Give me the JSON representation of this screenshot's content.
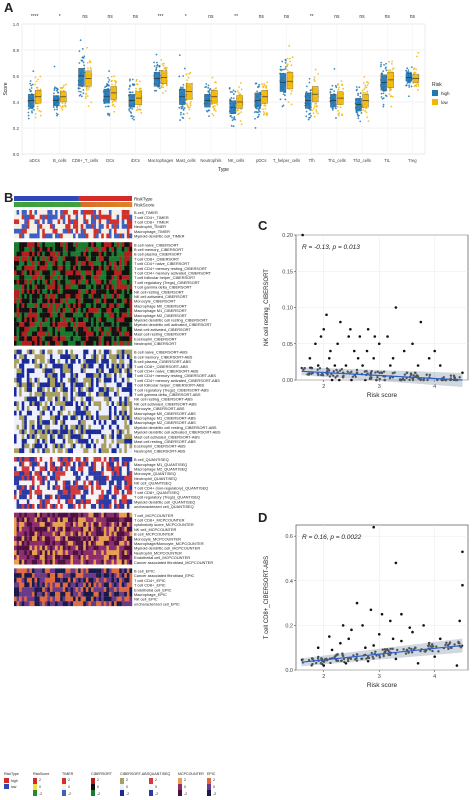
{
  "panel_letters": {
    "a": "A",
    "b": "B",
    "c": "C",
    "d": "D"
  },
  "chart_data": [
    {
      "type": "box",
      "id": "A",
      "xlabel": "Type",
      "ylabel": "Score",
      "ylim": [
        0.0,
        1.0
      ],
      "yticks": [
        "0.0",
        "0.2",
        "0.4",
        "0.6",
        "0.8",
        "1.0"
      ],
      "legend_title": "Risk",
      "legend_placement": "right",
      "series": [
        {
          "name": "high",
          "color": "#1f77b4"
        },
        {
          "name": "low",
          "color": "#f2b705"
        }
      ],
      "categories": [
        "aDCs",
        "B_cells",
        "CD8+_T_cells",
        "DCs",
        "iDCs",
        "Macrophages",
        "Mast_cells",
        "Neutrophils",
        "NK_cells",
        "pDCs",
        "T_helper_cells",
        "Tfh",
        "Th1_cells",
        "Th2_cells",
        "TIL",
        "Treg"
      ],
      "significance": [
        "****",
        "*",
        "ns",
        "ns",
        "ns",
        "***",
        "*",
        "ns",
        "**",
        "ns",
        "ns",
        "**",
        "ns",
        "ns",
        "ns",
        "ns"
      ],
      "medians_high": [
        0.41,
        0.41,
        0.6,
        0.44,
        0.41,
        0.58,
        0.44,
        0.41,
        0.36,
        0.41,
        0.55,
        0.41,
        0.41,
        0.38,
        0.55,
        0.59
      ],
      "medians_low": [
        0.44,
        0.44,
        0.58,
        0.47,
        0.43,
        0.59,
        0.48,
        0.44,
        0.4,
        0.44,
        0.56,
        0.46,
        0.43,
        0.41,
        0.57,
        0.58
      ],
      "q_high": [
        [
          0.36,
          0.46
        ],
        [
          0.37,
          0.45
        ],
        [
          0.52,
          0.66
        ],
        [
          0.39,
          0.5
        ],
        [
          0.36,
          0.46
        ],
        [
          0.52,
          0.63
        ],
        [
          0.38,
          0.5
        ],
        [
          0.36,
          0.46
        ],
        [
          0.31,
          0.41
        ],
        [
          0.36,
          0.47
        ],
        [
          0.48,
          0.62
        ],
        [
          0.35,
          0.47
        ],
        [
          0.36,
          0.46
        ],
        [
          0.33,
          0.43
        ],
        [
          0.49,
          0.61
        ],
        [
          0.56,
          0.62
        ]
      ],
      "q_low": [
        [
          0.39,
          0.49
        ],
        [
          0.4,
          0.48
        ],
        [
          0.52,
          0.64
        ],
        [
          0.42,
          0.52
        ],
        [
          0.38,
          0.48
        ],
        [
          0.54,
          0.64
        ],
        [
          0.42,
          0.54
        ],
        [
          0.39,
          0.49
        ],
        [
          0.35,
          0.45
        ],
        [
          0.39,
          0.49
        ],
        [
          0.5,
          0.63
        ],
        [
          0.4,
          0.52
        ],
        [
          0.38,
          0.48
        ],
        [
          0.36,
          0.46
        ],
        [
          0.51,
          0.63
        ],
        [
          0.55,
          0.61
        ]
      ]
    },
    {
      "type": "heatmap",
      "id": "B",
      "annotations": [
        "RiskType",
        "RiskScore"
      ],
      "riskType_colors": {
        "high": "#d42a2a",
        "low": "#2f48b8"
      },
      "groups": [
        {
          "name": "TIMER",
          "rows": [
            "B cell_TIMER",
            "T cell CD4+_TIMER",
            "T cell CD8+_TIMER",
            "Neutrophil_TIMER",
            "Macrophage_TIMER",
            "Myeloid dendritic cell_TIMER"
          ]
        },
        {
          "name": "CIBERSORT",
          "rows": [
            "B cell naive_CIBERSORT",
            "B cell memory_CIBERSORT",
            "B cell plasma_CIBERSORT",
            "T cell CD8+_CIBERSORT",
            "T cell CD4+ naive_CIBERSORT",
            "T cell CD4+ memory resting_CIBERSORT",
            "T cell CD4+ memory activated_CIBERSORT",
            "T cell follicular helper_CIBERSORT",
            "T cell regulatory (Tregs)_CIBERSORT",
            "T cell gamma delta_CIBERSORT",
            "NK cell resting_CIBERSORT",
            "NK cell activated_CIBERSORT",
            "Monocyte_CIBERSORT",
            "Macrophage M0_CIBERSORT",
            "Macrophage M1_CIBERSORT",
            "Macrophage M2_CIBERSORT",
            "Myeloid dendritic cell resting_CIBERSORT",
            "Myeloid dendritic cell activated_CIBERSORT",
            "Mast cell activated_CIBERSORT",
            "Mast cell resting_CIBERSORT",
            "Eosinophil_CIBERSORT",
            "Neutrophil_CIBERSORT"
          ]
        },
        {
          "name": "CIBERSORT-ABS",
          "rows": [
            "B cell naive_CIBERSORT-ABS",
            "B cell memory_CIBERSORT-ABS",
            "B cell plasma_CIBERSORT-ABS",
            "T cell CD8+_CIBERSORT-ABS",
            "T cell CD4+ naive_CIBERSORT-ABS",
            "T cell CD4+ memory resting_CIBERSORT-ABS",
            "T cell CD4+ memory activated_CIBERSORT-ABS",
            "T cell follicular helper_CIBERSORT-ABS",
            "T cell regulatory (Tregs)_CIBERSORT-ABS",
            "T cell gamma delta_CIBERSORT-ABS",
            "NK cell resting_CIBERSORT-ABS",
            "NK cell activated_CIBERSORT-ABS",
            "Monocyte_CIBERSORT-ABS",
            "Macrophage M0_CIBERSORT-ABS",
            "Macrophage M1_CIBERSORT-ABS",
            "Macrophage M2_CIBERSORT-ABS",
            "Myeloid dendritic cell resting_CIBERSORT-ABS",
            "Myeloid dendritic cell activated_CIBERSORT-ABS",
            "Mast cell activated_CIBERSORT-ABS",
            "Mast cell resting_CIBERSORT-ABS",
            "Eosinophil_CIBERSORT-ABS",
            "Neutrophil_CIBERSORT-ABS"
          ]
        },
        {
          "name": "QUANTISEQ",
          "rows": [
            "B cell_QUANTISEQ",
            "Macrophage M1_QUANTISEQ",
            "Macrophage M2_QUANTISEQ",
            "Monocyte_QUANTISEQ",
            "Neutrophil_QUANTISEQ",
            "NK cell_QUANTISEQ",
            "T cell CD4+ (non-regulatory)_QUANTISEQ",
            "T cell CD8+_QUANTISEQ",
            "T cell regulatory (Tregs)_QUANTISEQ",
            "Myeloid dendritic cell_QUANTISEQ",
            "uncharacterized cell_QUANTISEQ"
          ]
        },
        {
          "name": "MCPCOUNTER",
          "rows": [
            "T cell_MCPCOUNTER",
            "T cell CD8+_MCPCOUNTER",
            "cytotoxicity score_MCPCOUNTER",
            "NK cell_MCPCOUNTER",
            "B cell_MCPCOUNTER",
            "Monocyte_MCPCOUNTER",
            "Macrophage/Monocyte_MCPCOUNTER",
            "Myeloid dendritic cell_MCPCOUNTER",
            "Neutrophil_MCPCOUNTER",
            "Endothelial cell_MCPCOUNTER",
            "Cancer associated fibroblast_MCPCOUNTER"
          ]
        },
        {
          "name": "EPIC",
          "rows": [
            "B cell_EPIC",
            "Cancer associated fibroblast_EPIC",
            "T cell CD4+_EPIC",
            "T cell CD8+_EPIC",
            "Endothelial cell_EPIC",
            "Macrophage_EPIC",
            "NK cell_EPIC",
            "uncharacterized cell_EPIC"
          ]
        }
      ],
      "legend_titles": [
        "RiskType",
        "RiskScore",
        "TIMER",
        "CIBERSORT",
        "CIBERSORT-ABS",
        "QUANTISEQ",
        "MCPCOUNTER",
        "EPIC"
      ],
      "legend_risk_items": [
        "high",
        "low"
      ],
      "legend_ticks": [
        "2",
        "0",
        "-2"
      ]
    },
    {
      "type": "scatter",
      "id": "C",
      "xlabel": "Risk score",
      "ylabel": "NK cell resting_CIBERSORT",
      "annotation": "R = -0.13, p = 0.013",
      "xlim": [
        1.5,
        4.6
      ],
      "ylim": [
        0,
        0.2
      ],
      "xticks": [
        2,
        3,
        4
      ],
      "yticks": [
        "0.00",
        "0.05",
        "0.10",
        "0.15",
        "0.20"
      ],
      "fit": {
        "x": [
          1.6,
          4.5
        ],
        "y": [
          0.012,
          0.0
        ]
      },
      "points": [
        [
          1.62,
          0.2
        ],
        [
          1.75,
          0.03
        ],
        [
          1.8,
          0.01
        ],
        [
          1.9,
          0.02
        ],
        [
          1.95,
          0.06
        ],
        [
          2.0,
          0.07
        ],
        [
          2.05,
          0.01
        ],
        [
          2.1,
          0.03
        ],
        [
          2.15,
          0.0
        ],
        [
          2.2,
          0.02
        ],
        [
          2.25,
          0.05
        ],
        [
          2.3,
          0.08
        ],
        [
          2.35,
          0.01
        ],
        [
          2.4,
          0.02
        ],
        [
          2.45,
          0.06
        ],
        [
          2.5,
          0.0
        ],
        [
          2.55,
          0.04
        ],
        [
          2.6,
          0.01
        ],
        [
          2.65,
          0.06
        ],
        [
          2.7,
          0.02
        ],
        [
          2.75,
          0.0
        ],
        [
          2.8,
          0.07
        ],
        [
          2.85,
          0.01
        ],
        [
          2.9,
          0.03
        ],
        [
          2.95,
          0.0
        ],
        [
          3.0,
          0.05
        ],
        [
          3.05,
          0.01
        ],
        [
          3.1,
          0.0
        ],
        [
          3.2,
          0.02
        ],
        [
          3.3,
          0.1
        ],
        [
          3.4,
          0.0
        ],
        [
          3.5,
          0.01
        ],
        [
          3.7,
          0.02
        ],
        [
          3.8,
          0.0
        ],
        [
          4.0,
          0.04
        ],
        [
          4.2,
          0.0
        ],
        [
          4.4,
          0.0
        ],
        [
          4.5,
          0.01
        ],
        [
          3.6,
          0.05
        ],
        [
          3.75,
          0.08
        ],
        [
          3.9,
          0.03
        ],
        [
          2.12,
          0.04
        ],
        [
          2.28,
          0.0
        ],
        [
          2.62,
          0.03
        ],
        [
          2.78,
          0.04
        ],
        [
          3.15,
          0.06
        ],
        [
          3.25,
          0.03
        ],
        [
          1.85,
          0.05
        ],
        [
          2.05,
          0.09
        ],
        [
          2.48,
          0.07
        ],
        [
          2.92,
          0.06
        ],
        [
          3.45,
          0.04
        ],
        [
          3.65,
          0.01
        ],
        [
          4.1,
          0.02
        ]
      ]
    },
    {
      "type": "scatter",
      "id": "D",
      "xlabel": "Risk score",
      "ylabel": "T cell CD8+_CIBERSORT-ABS",
      "annotation": "R = 0.16, p = 0.0022",
      "xlim": [
        1.5,
        4.6
      ],
      "ylim": [
        0,
        0.65
      ],
      "xticks": [
        2,
        3,
        4
      ],
      "yticks": [
        "0.0",
        "0.2",
        "0.4",
        "0.6"
      ],
      "fit": {
        "x": [
          1.6,
          4.5
        ],
        "y": [
          0.035,
          0.11
        ]
      },
      "points": [
        [
          2.9,
          0.64
        ],
        [
          3.3,
          0.48
        ],
        [
          4.5,
          0.53
        ],
        [
          4.5,
          0.38
        ],
        [
          2.6,
          0.3
        ],
        [
          3.4,
          0.25
        ],
        [
          3.8,
          0.2
        ],
        [
          4.1,
          0.14
        ],
        [
          1.8,
          0.05
        ],
        [
          1.9,
          0.1
        ],
        [
          2.0,
          0.02
        ],
        [
          2.1,
          0.15
        ],
        [
          2.2,
          0.06
        ],
        [
          2.3,
          0.12
        ],
        [
          2.4,
          0.03
        ],
        [
          2.5,
          0.18
        ],
        [
          2.6,
          0.07
        ],
        [
          2.7,
          0.2
        ],
        [
          2.8,
          0.04
        ],
        [
          2.9,
          0.11
        ],
        [
          3.0,
          0.16
        ],
        [
          3.1,
          0.08
        ],
        [
          3.2,
          0.22
        ],
        [
          3.3,
          0.05
        ],
        [
          3.4,
          0.13
        ],
        [
          3.5,
          0.09
        ],
        [
          3.6,
          0.17
        ],
        [
          3.7,
          0.03
        ],
        [
          3.9,
          0.12
        ],
        [
          4.0,
          0.06
        ],
        [
          4.3,
          0.1
        ],
        [
          4.45,
          0.22
        ],
        [
          4.4,
          0.02
        ],
        [
          2.15,
          0.09
        ],
        [
          2.45,
          0.14
        ],
        [
          2.75,
          0.1
        ],
        [
          3.05,
          0.25
        ],
        [
          3.55,
          0.19
        ],
        [
          1.95,
          0.03
        ],
        [
          2.35,
          0.2
        ],
        [
          2.85,
          0.27
        ],
        [
          3.25,
          0.14
        ]
      ]
    }
  ]
}
